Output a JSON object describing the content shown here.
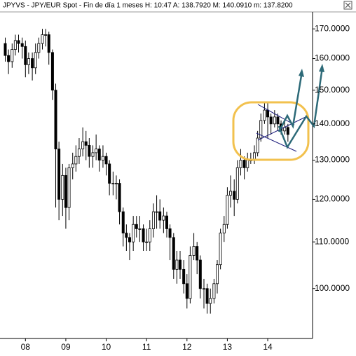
{
  "chart_data": {
    "type": "candlestick",
    "title": "JPYVS - JPY/EUR Spot - Fin de día 1 meses  H: 10:47  A: 138.7920  M: 140.0910  m: 137.8200",
    "log_scale": true,
    "up_color": "#ffffff",
    "down_color": "#000000",
    "grid": false,
    "xlim": [
      2007.37,
      2015.11
    ],
    "xticks": [
      {
        "value": 2008,
        "label": "08"
      },
      {
        "value": 2009,
        "label": "09"
      },
      {
        "value": 2010,
        "label": "10"
      },
      {
        "value": 2011,
        "label": "11"
      },
      {
        "value": 2012,
        "label": "12"
      },
      {
        "value": 2013,
        "label": "13"
      },
      {
        "value": 2014,
        "label": "14"
      }
    ],
    "ylim": [
      90.3,
      176
    ],
    "yticks": [
      {
        "value": 100,
        "label": "100.0000"
      },
      {
        "value": 110,
        "label": "110.0000"
      },
      {
        "value": 120,
        "label": "120.0000"
      },
      {
        "value": 130,
        "label": "130.0000"
      },
      {
        "value": 140,
        "label": "140.0000"
      },
      {
        "value": 150,
        "label": "150.0000"
      },
      {
        "value": 160,
        "label": "160.0000"
      },
      {
        "value": 170,
        "label": "170.0000"
      }
    ],
    "x": [
      2007.5,
      2007.58,
      2007.67,
      2007.75,
      2007.83,
      2007.92,
      2008.0,
      2008.08,
      2008.17,
      2008.25,
      2008.33,
      2008.42,
      2008.5,
      2008.58,
      2008.67,
      2008.75,
      2008.83,
      2008.92,
      2009.0,
      2009.08,
      2009.17,
      2009.25,
      2009.33,
      2009.42,
      2009.5,
      2009.58,
      2009.67,
      2009.75,
      2009.83,
      2009.92,
      2010.0,
      2010.08,
      2010.17,
      2010.25,
      2010.33,
      2010.42,
      2010.5,
      2010.58,
      2010.67,
      2010.75,
      2010.83,
      2010.92,
      2011.0,
      2011.08,
      2011.17,
      2011.25,
      2011.33,
      2011.42,
      2011.5,
      2011.58,
      2011.67,
      2011.75,
      2011.83,
      2011.92,
      2012.0,
      2012.08,
      2012.17,
      2012.25,
      2012.33,
      2012.42,
      2012.5,
      2012.58,
      2012.67,
      2012.75,
      2012.83,
      2012.92,
      2013.0,
      2013.08,
      2013.17,
      2013.25,
      2013.33,
      2013.42,
      2013.5,
      2013.58,
      2013.67,
      2013.75,
      2013.83,
      2013.92,
      2014.0,
      2014.08,
      2014.17,
      2014.25,
      2014.33,
      2014.42,
      2014.5
    ],
    "open": [
      165,
      161,
      159,
      163,
      166,
      165,
      164,
      158,
      160,
      157,
      162,
      165,
      168,
      168,
      162,
      150,
      133,
      120,
      126,
      118,
      128,
      129,
      131,
      133,
      135,
      134,
      131,
      132,
      133,
      130,
      131,
      129,
      124,
      124,
      124,
      117,
      112,
      111,
      110,
      114,
      113,
      113,
      110,
      110,
      113,
      117,
      117,
      115,
      116,
      113,
      111,
      104,
      106,
      104,
      101,
      98,
      107,
      109,
      106,
      100,
      100,
      97,
      98,
      101,
      105,
      112,
      114,
      121,
      122,
      120,
      128,
      130,
      128,
      130,
      130,
      132,
      136,
      141,
      144,
      142,
      140,
      142,
      140,
      138,
      139
    ],
    "high": [
      167,
      163,
      165,
      168,
      168,
      167,
      166,
      162,
      162,
      165,
      167,
      170,
      170,
      169,
      163,
      152,
      135,
      129,
      128,
      129,
      132,
      134,
      136,
      139,
      138,
      136,
      134,
      137,
      134,
      134,
      132,
      130,
      127,
      126,
      125,
      118,
      114,
      112,
      116,
      116,
      116,
      114,
      113,
      115,
      119,
      121,
      120,
      118,
      117,
      114,
      112,
      108,
      108,
      106,
      103,
      109,
      112,
      110,
      107,
      102,
      101,
      100,
      102,
      106,
      113,
      116,
      123,
      126,
      125,
      130,
      133,
      131,
      132,
      132,
      134,
      138,
      143,
      146,
      146,
      143,
      144,
      143,
      141,
      141,
      140
    ],
    "low": [
      159,
      155,
      157,
      161,
      162,
      160,
      154,
      155,
      153,
      155,
      160,
      163,
      164,
      158,
      147,
      118,
      115,
      116,
      113,
      115,
      125,
      127,
      129,
      131,
      130,
      128,
      128,
      130,
      127,
      128,
      126,
      121,
      121,
      120,
      114,
      109,
      108,
      106,
      108,
      111,
      110,
      108,
      108,
      108,
      111,
      113,
      113,
      112,
      111,
      106,
      102,
      101,
      102,
      99,
      96,
      97,
      106,
      103,
      98,
      96,
      95,
      95,
      97,
      99,
      104,
      110,
      113,
      118,
      116,
      119,
      126,
      125,
      127,
      129,
      129,
      131,
      135,
      140,
      136,
      137,
      139,
      138,
      137,
      137,
      135
    ],
    "close": [
      161,
      159,
      163,
      166,
      165,
      164,
      158,
      160,
      157,
      162,
      165,
      168,
      168,
      162,
      150,
      133,
      120,
      126,
      118,
      128,
      129,
      131,
      133,
      135,
      134,
      131,
      132,
      133,
      130,
      131,
      129,
      124,
      124,
      124,
      117,
      112,
      111,
      110,
      114,
      113,
      113,
      110,
      110,
      113,
      117,
      117,
      115,
      116,
      113,
      111,
      104,
      106,
      104,
      101,
      98,
      107,
      109,
      106,
      100,
      100,
      97,
      98,
      101,
      105,
      112,
      114,
      121,
      122,
      120,
      128,
      130,
      128,
      130,
      130,
      132,
      136,
      141,
      144,
      142,
      140,
      142,
      140,
      138,
      139,
      137
    ]
  }
}
